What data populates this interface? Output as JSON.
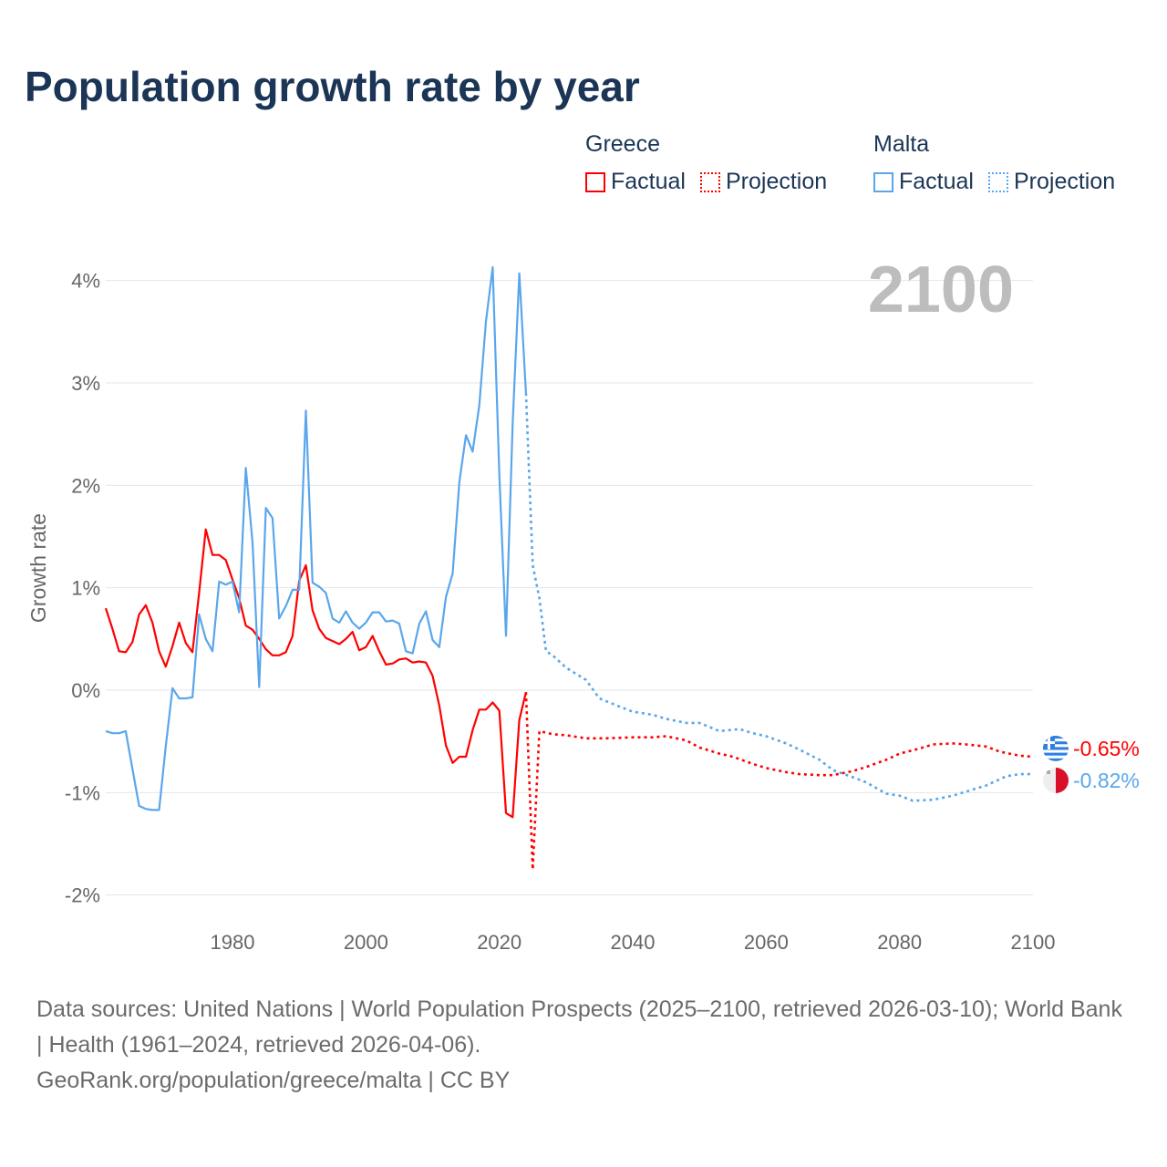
{
  "title": "Population growth rate by year",
  "legend": {
    "groups": [
      {
        "name": "Greece",
        "factual": "Factual",
        "projection": "Projection",
        "color": "#ff0000"
      },
      {
        "name": "Malta",
        "factual": "Factual",
        "projection": "Projection",
        "color": "#5aa6ec"
      }
    ]
  },
  "year_display": "2100",
  "end_labels": {
    "greece": "-0.65%",
    "malta": "-0.82%"
  },
  "sources": {
    "line1": "Data sources: United Nations | World Population Prospects (2025–2100, retrieved 2026-03-10); World Bank | Health (1961–2024, retrieved 2026-04-06).",
    "line2": "GeoRank.org/population/greece/malta | CC BY"
  },
  "chart_data": {
    "type": "line",
    "title": "Population growth rate by year",
    "xlabel": "",
    "ylabel": "Growth rate",
    "xlim": [
      1961,
      2100
    ],
    "ylim": [
      -2.2,
      4.3
    ],
    "xticks": [
      1980,
      2000,
      2020,
      2040,
      2060,
      2080,
      2100
    ],
    "xtick_labels": [
      "1980",
      "2000",
      "2020",
      "2040",
      "2060",
      "2080",
      "2100"
    ],
    "yticks": [
      4,
      3,
      2,
      1,
      0,
      -1,
      -2
    ],
    "ytick_labels": [
      "4%",
      "3%",
      "2%",
      "1%",
      "0%",
      "-1%",
      "-2%"
    ],
    "grid": true,
    "legend_position": "top-right",
    "series": [
      {
        "name": "Greece Factual",
        "color": "#ff0000",
        "style": "solid",
        "x": [
          1961,
          1962,
          1963,
          1964,
          1965,
          1966,
          1967,
          1968,
          1969,
          1970,
          1971,
          1972,
          1973,
          1974,
          1975,
          1976,
          1977,
          1978,
          1979,
          1980,
          1981,
          1982,
          1983,
          1984,
          1985,
          1986,
          1987,
          1988,
          1989,
          1990,
          1991,
          1992,
          1993,
          1994,
          1995,
          1996,
          1997,
          1998,
          1999,
          2000,
          2001,
          2002,
          2003,
          2004,
          2005,
          2006,
          2007,
          2008,
          2009,
          2010,
          2011,
          2012,
          2013,
          2014,
          2015,
          2016,
          2017,
          2018,
          2019,
          2020,
          2021,
          2022,
          2023,
          2024
        ],
        "y": [
          0.8,
          0.6,
          0.38,
          0.37,
          0.47,
          0.74,
          0.83,
          0.66,
          0.38,
          0.23,
          0.43,
          0.66,
          0.46,
          0.37,
          0.95,
          1.57,
          1.32,
          1.32,
          1.27,
          1.08,
          0.9,
          0.63,
          0.59,
          0.5,
          0.4,
          0.34,
          0.34,
          0.37,
          0.53,
          1.07,
          1.22,
          0.78,
          0.6,
          0.51,
          0.48,
          0.45,
          0.5,
          0.57,
          0.39,
          0.42,
          0.53,
          0.38,
          0.25,
          0.26,
          0.3,
          0.31,
          0.27,
          0.28,
          0.27,
          0.14,
          -0.15,
          -0.54,
          -0.71,
          -0.65,
          -0.65,
          -0.39,
          -0.19,
          -0.19,
          -0.12,
          -0.2,
          -1.2,
          -1.24,
          -0.29,
          -0.02
        ]
      },
      {
        "name": "Greece Projection",
        "color": "#ff0000",
        "style": "dotted",
        "x": [
          2024,
          2025,
          2026,
          2028,
          2030,
          2033,
          2036,
          2040,
          2043,
          2045,
          2048,
          2050,
          2053,
          2055,
          2058,
          2060,
          2063,
          2065,
          2068,
          2070,
          2073,
          2075,
          2078,
          2080,
          2083,
          2085,
          2088,
          2090,
          2093,
          2095,
          2098,
          2100
        ],
        "y": [
          -0.02,
          -1.75,
          -0.4,
          -0.43,
          -0.44,
          -0.47,
          -0.47,
          -0.46,
          -0.46,
          -0.45,
          -0.49,
          -0.56,
          -0.62,
          -0.65,
          -0.72,
          -0.76,
          -0.8,
          -0.82,
          -0.83,
          -0.83,
          -0.79,
          -0.75,
          -0.68,
          -0.62,
          -0.57,
          -0.53,
          -0.52,
          -0.53,
          -0.55,
          -0.6,
          -0.64,
          -0.65
        ]
      },
      {
        "name": "Malta Factual",
        "color": "#5aa6ec",
        "style": "solid",
        "x": [
          1961,
          1962,
          1963,
          1964,
          1965,
          1966,
          1967,
          1968,
          1969,
          1970,
          1971,
          1972,
          1973,
          1974,
          1975,
          1976,
          1977,
          1978,
          1979,
          1980,
          1981,
          1982,
          1983,
          1984,
          1985,
          1986,
          1987,
          1988,
          1989,
          1990,
          1991,
          1992,
          1993,
          1994,
          1995,
          1996,
          1997,
          1998,
          1999,
          2000,
          2001,
          2002,
          2003,
          2004,
          2005,
          2006,
          2007,
          2008,
          2009,
          2010,
          2011,
          2012,
          2013,
          2014,
          2015,
          2016,
          2017,
          2018,
          2019,
          2020,
          2021,
          2022,
          2023,
          2024
        ],
        "y": [
          -0.4,
          -0.42,
          -0.42,
          -0.4,
          -0.77,
          -1.13,
          -1.16,
          -1.17,
          -1.17,
          -0.55,
          0.02,
          -0.08,
          -0.08,
          -0.07,
          0.74,
          0.5,
          0.38,
          1.06,
          1.03,
          1.06,
          0.76,
          2.17,
          1.44,
          0.03,
          1.78,
          1.68,
          0.7,
          0.82,
          0.98,
          0.98,
          2.73,
          1.05,
          1.01,
          0.95,
          0.7,
          0.66,
          0.77,
          0.66,
          0.6,
          0.66,
          0.76,
          0.76,
          0.67,
          0.68,
          0.65,
          0.38,
          0.36,
          0.65,
          0.77,
          0.49,
          0.42,
          0.91,
          1.14,
          2.03,
          2.49,
          2.33,
          2.78,
          3.6,
          4.13,
          2.1,
          0.53,
          2.6,
          4.07,
          2.9
        ]
      },
      {
        "name": "Malta Projection",
        "color": "#5aa6ec",
        "style": "dotted",
        "x": [
          2024,
          2025,
          2026,
          2027,
          2028,
          2030,
          2033,
          2035,
          2038,
          2040,
          2043,
          2045,
          2048,
          2050,
          2053,
          2056,
          2058,
          2060,
          2063,
          2065,
          2068,
          2070,
          2073,
          2075,
          2078,
          2080,
          2082,
          2085,
          2088,
          2090,
          2093,
          2096,
          2098,
          2100
        ],
        "y": [
          2.9,
          1.22,
          0.9,
          0.38,
          0.34,
          0.22,
          0.1,
          -0.08,
          -0.16,
          -0.21,
          -0.24,
          -0.28,
          -0.32,
          -0.32,
          -0.4,
          -0.38,
          -0.42,
          -0.45,
          -0.52,
          -0.58,
          -0.68,
          -0.78,
          -0.85,
          -0.9,
          -1.01,
          -1.03,
          -1.08,
          -1.07,
          -1.03,
          -0.99,
          -0.93,
          -0.84,
          -0.82,
          -0.82
        ]
      }
    ]
  }
}
